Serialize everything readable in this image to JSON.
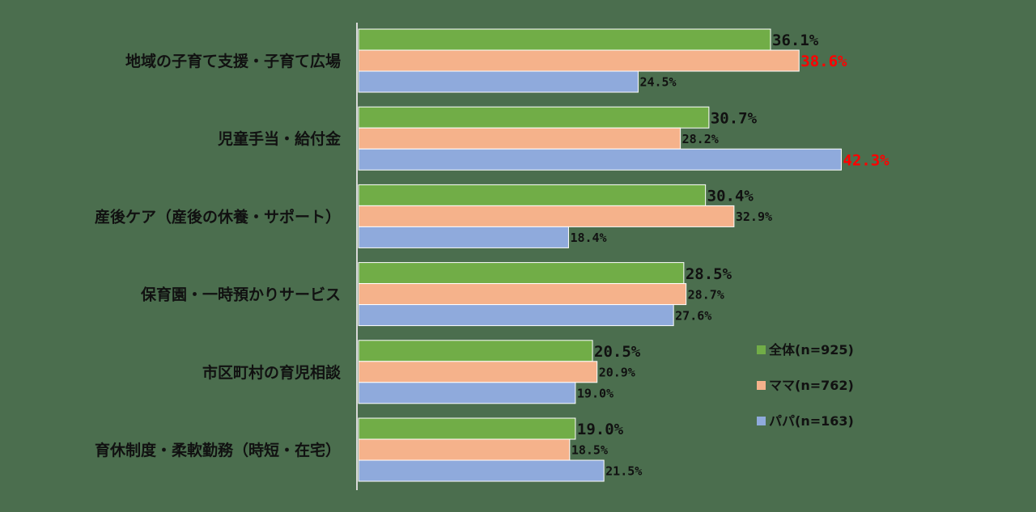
{
  "chart_data": {
    "type": "bar",
    "orientation": "horizontal",
    "categories": [
      "地域の子育て支援・子育て広場",
      "児童手当・給付金",
      "産後ケア（産後の休養・サポート）",
      "保育園・一時預かりサービス",
      "市区町村の育児相談",
      "育休制度・柔軟勤務（時短・在宅）"
    ],
    "series": [
      {
        "name": "全体(n=925)",
        "color": "#71ad47",
        "values": [
          36.1,
          30.7,
          30.4,
          28.5,
          20.5,
          19.0
        ]
      },
      {
        "name": "ママ(n=762)",
        "color": "#f5b28b",
        "values": [
          38.6,
          28.2,
          32.9,
          28.7,
          20.9,
          18.5
        ]
      },
      {
        "name": "パパ(n=163)",
        "color": "#8faadc",
        "values": [
          24.5,
          42.3,
          18.4,
          27.6,
          19.0,
          21.5
        ]
      }
    ],
    "value_labels": [
      [
        "36.1%",
        "38.6%",
        "24.5%"
      ],
      [
        "30.7%",
        "28.2%",
        "42.3%"
      ],
      [
        "30.4%",
        "32.9%",
        "18.4%"
      ],
      [
        "28.5%",
        "28.7%",
        "27.6%"
      ],
      [
        "20.5%",
        "20.9%",
        "19.0%"
      ],
      [
        "19.0%",
        "18.5%",
        "21.5%"
      ]
    ],
    "highlighted": [
      [
        0,
        1
      ],
      [
        1,
        2
      ]
    ],
    "highlight_color": "#ff0000",
    "unit": "%",
    "xlim": [
      0,
      45
    ],
    "grid": false,
    "legend_position": "right"
  }
}
